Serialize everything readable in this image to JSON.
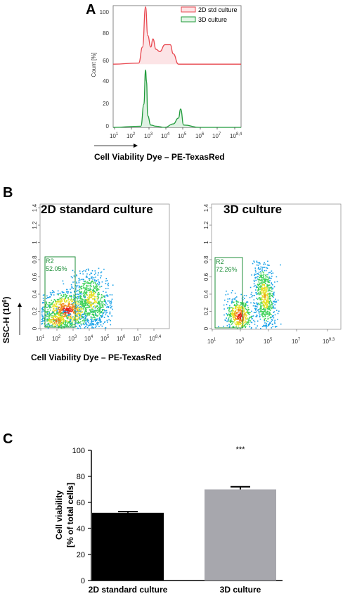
{
  "panels": {
    "a": {
      "label": "A",
      "legend": [
        {
          "name": "2D std culture",
          "color": "#e8474f"
        },
        {
          "name": "3D culture",
          "color": "#1f9a3a"
        }
      ],
      "ylabel": "Count [%]",
      "y_ticks": [
        "100",
        "80",
        "60",
        "40",
        "20",
        "0"
      ],
      "x_ticks": [
        "10",
        "10",
        "10",
        "10",
        "10",
        "10",
        "10",
        "10"
      ],
      "x_tick_exps": [
        "1",
        "2",
        "3",
        "4",
        "5",
        "6",
        "7",
        "8,4"
      ],
      "xlabel": "Cell Viability Dye – PE-TexasRed"
    },
    "b": {
      "label": "B",
      "left_title": "2D standard culture",
      "right_title": "3D culture",
      "ylabel": "SSC-H (10",
      "ylabel_exp": "6",
      "ylabel_close": ")",
      "y_ticks": [
        "1.4",
        "1.2",
        "1",
        "0.8",
        "0.6",
        "0.4",
        "0.2",
        "0"
      ],
      "left_x_ticks": [
        "10",
        "10",
        "10",
        "10",
        "10",
        "10",
        "10",
        "10"
      ],
      "left_x_exps": [
        "1",
        "2",
        "3",
        "4",
        "5",
        "6",
        "7",
        "8,4"
      ],
      "right_x_ticks": [
        "10",
        "10",
        "10",
        "10",
        "10"
      ],
      "right_x_exps": [
        "1",
        "3",
        "5",
        "7",
        "9.3"
      ],
      "xlabel": "Cell Viability Dye – PE-TexasRed",
      "gate_left": {
        "name": "R2",
        "pct": "52.05%"
      },
      "gate_right": {
        "name": "R2",
        "pct": "72.26%"
      }
    },
    "c": {
      "label": "C",
      "significance": "***"
    }
  },
  "chart_data": [
    {
      "type": "line",
      "panel": "A",
      "xlabel": "Cell Viability Dye – PE-TexasRed",
      "ylabel": "Count [%]",
      "x_scale": "log",
      "xlim": [
        10,
        251188643
      ],
      "series": [
        {
          "name": "2D std culture",
          "color": "#e8474f",
          "x": [
            10,
            300,
            500,
            750,
            1000,
            1500,
            2000,
            3000,
            5000,
            10000,
            20000,
            30000,
            60000,
            1000000,
            251188643
          ],
          "y": [
            55,
            56,
            70,
            105,
            80,
            70,
            77,
            68,
            66,
            72,
            72,
            64,
            55,
            55,
            55
          ]
        },
        {
          "name": "3D culture",
          "color": "#1f9a3a",
          "x": [
            10,
            400,
            600,
            750,
            850,
            1000,
            1500,
            3000,
            10000,
            30000,
            60000,
            80000,
            120000,
            1000000,
            251188643
          ],
          "y": [
            0,
            1,
            20,
            50,
            40,
            10,
            2,
            1,
            0,
            3,
            8,
            16,
            2,
            0,
            0
          ]
        }
      ]
    },
    {
      "type": "bar",
      "panel": "C",
      "categories": [
        "2D standard culture",
        "3D culture"
      ],
      "values": [
        52,
        70
      ],
      "errors": [
        1,
        2
      ],
      "colors": [
        "#000000",
        "#a7a7ad"
      ],
      "ylabel": "Cell viability\n[% of total cells]",
      "ylim": [
        0,
        100
      ],
      "y_ticks": [
        "0",
        "20",
        "40",
        "60",
        "80",
        "100"
      ]
    }
  ]
}
